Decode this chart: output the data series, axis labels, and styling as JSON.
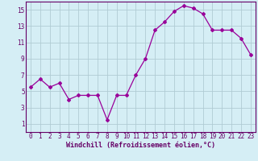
{
  "x": [
    0,
    1,
    2,
    3,
    4,
    5,
    6,
    7,
    8,
    9,
    10,
    11,
    12,
    13,
    14,
    15,
    16,
    17,
    18,
    19,
    20,
    21,
    22,
    23
  ],
  "y": [
    5.5,
    6.5,
    5.5,
    6.0,
    4.0,
    4.5,
    4.5,
    4.5,
    1.5,
    4.5,
    4.5,
    7.0,
    9.0,
    12.5,
    13.5,
    14.8,
    15.5,
    15.2,
    14.5,
    12.5,
    12.5,
    12.5,
    11.5,
    9.5
  ],
  "line_color": "#990099",
  "marker": "D",
  "marker_size": 2,
  "bg_color": "#d5eef5",
  "grid_color": "#b0ccd4",
  "xlabel": "Windchill (Refroidissement éolien,°C)",
  "xlim": [
    -0.5,
    23.5
  ],
  "ylim": [
    0,
    16
  ],
  "yticks": [
    1,
    3,
    5,
    7,
    9,
    11,
    13,
    15
  ],
  "xticks": [
    0,
    1,
    2,
    3,
    4,
    5,
    6,
    7,
    8,
    9,
    10,
    11,
    12,
    13,
    14,
    15,
    16,
    17,
    18,
    19,
    20,
    21,
    22,
    23
  ],
  "tick_fontsize": 5.5,
  "xlabel_fontsize": 6.0,
  "axis_color": "#660066",
  "spine_color": "#660066"
}
